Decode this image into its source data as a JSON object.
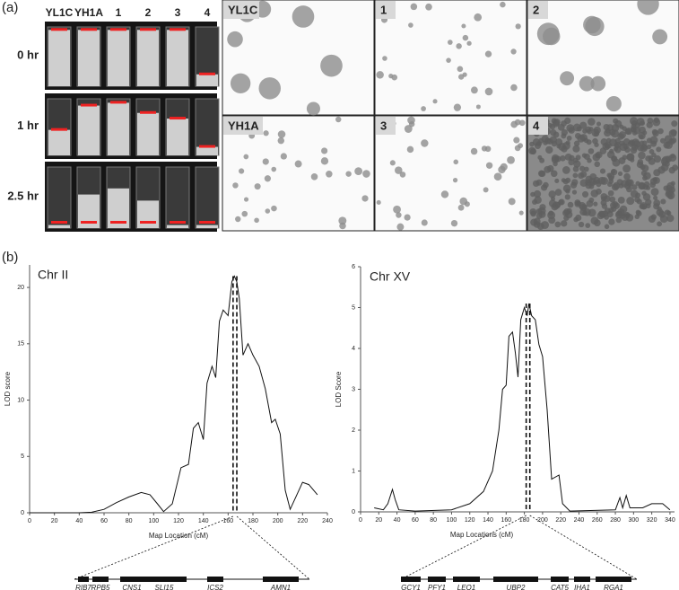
{
  "panel_a": {
    "label": "(a)",
    "columns": [
      "YL1C",
      "YH1A",
      "1",
      "2",
      "3",
      "4"
    ],
    "rows": [
      "0 hr",
      "1 hr",
      "2.5 hr"
    ],
    "micrographs": [
      "YL1C",
      "1",
      "2",
      "YH1A",
      "3",
      "4"
    ]
  },
  "panel_b": {
    "label": "(b)"
  },
  "chart_data": [
    {
      "type": "line",
      "title": "Chr II",
      "x_label": "Map Location (cM)",
      "y_label": "LOD score",
      "xlim": [
        0,
        240
      ],
      "xticks": [
        0,
        20,
        40,
        60,
        80,
        100,
        120,
        140,
        160,
        180,
        200,
        220,
        240
      ],
      "ylim": [
        0,
        22
      ],
      "yticks": [
        0,
        5,
        10,
        15,
        20
      ],
      "series": [
        {
          "color": "#111111",
          "x": [
            0,
            40,
            50,
            60,
            70,
            80,
            90,
            97,
            103,
            108,
            115,
            122,
            128,
            132,
            136,
            140,
            143,
            147,
            150,
            153,
            156,
            160,
            163,
            165,
            167,
            169,
            172,
            176,
            180,
            185,
            190,
            195,
            198,
            202,
            206,
            210,
            215,
            220,
            225,
            232
          ],
          "values": [
            0,
            0,
            0.05,
            0.3,
            0.9,
            1.4,
            1.8,
            1.6,
            0.8,
            0.1,
            0.8,
            4,
            4.3,
            7.5,
            8,
            6.5,
            11.5,
            13,
            12,
            17,
            18,
            17.5,
            20.5,
            21,
            20.5,
            19,
            14,
            15,
            14,
            13,
            11,
            8,
            8.3,
            7,
            2,
            0.3,
            1.5,
            2.7,
            2.5,
            1.6
          ]
        }
      ],
      "interval": [
        164,
        167
      ],
      "genes": [
        "RIB7",
        "RPB5",
        "CNS1",
        "SLI15",
        "ICS2",
        "AMN1"
      ]
    },
    {
      "type": "line",
      "title": "Chr XV",
      "x_label": "Map Locations (cM)",
      "y_label": "LOD Score",
      "xlim": [
        0,
        345
      ],
      "xticks": [
        0,
        20,
        40,
        60,
        80,
        100,
        120,
        140,
        160,
        180,
        200,
        220,
        240,
        260,
        280,
        300,
        320,
        340
      ],
      "ylim": [
        0,
        6
      ],
      "yticks": [
        0,
        1,
        2,
        3,
        4,
        5,
        6
      ],
      "series": [
        {
          "color": "#111111",
          "x": [
            15,
            25,
            30,
            35,
            38,
            42,
            60,
            100,
            120,
            135,
            145,
            152,
            156,
            160,
            163,
            167,
            170,
            173,
            176,
            180,
            183,
            185,
            188,
            192,
            196,
            200,
            205,
            210,
            218,
            222,
            230,
            280,
            285,
            288,
            292,
            296,
            310,
            320,
            332,
            340
          ],
          "values": [
            0.1,
            0.05,
            0.2,
            0.55,
            0.3,
            0.05,
            0.02,
            0.05,
            0.2,
            0.5,
            1,
            2,
            3,
            3.1,
            4.3,
            4.4,
            3.9,
            3.3,
            4.7,
            5,
            4.8,
            5.1,
            4.8,
            4.7,
            4.1,
            3.8,
            2.5,
            0.8,
            0.9,
            0.2,
            0.02,
            0.05,
            0.35,
            0.1,
            0.4,
            0.1,
            0.1,
            0.2,
            0.2,
            0.05
          ]
        }
      ],
      "interval": [
        182,
        186
      ],
      "genes": [
        "GCY1",
        "PFY1",
        "LEO1",
        "UBP2",
        "CAT5",
        "IHA1",
        "RGA1"
      ]
    }
  ]
}
